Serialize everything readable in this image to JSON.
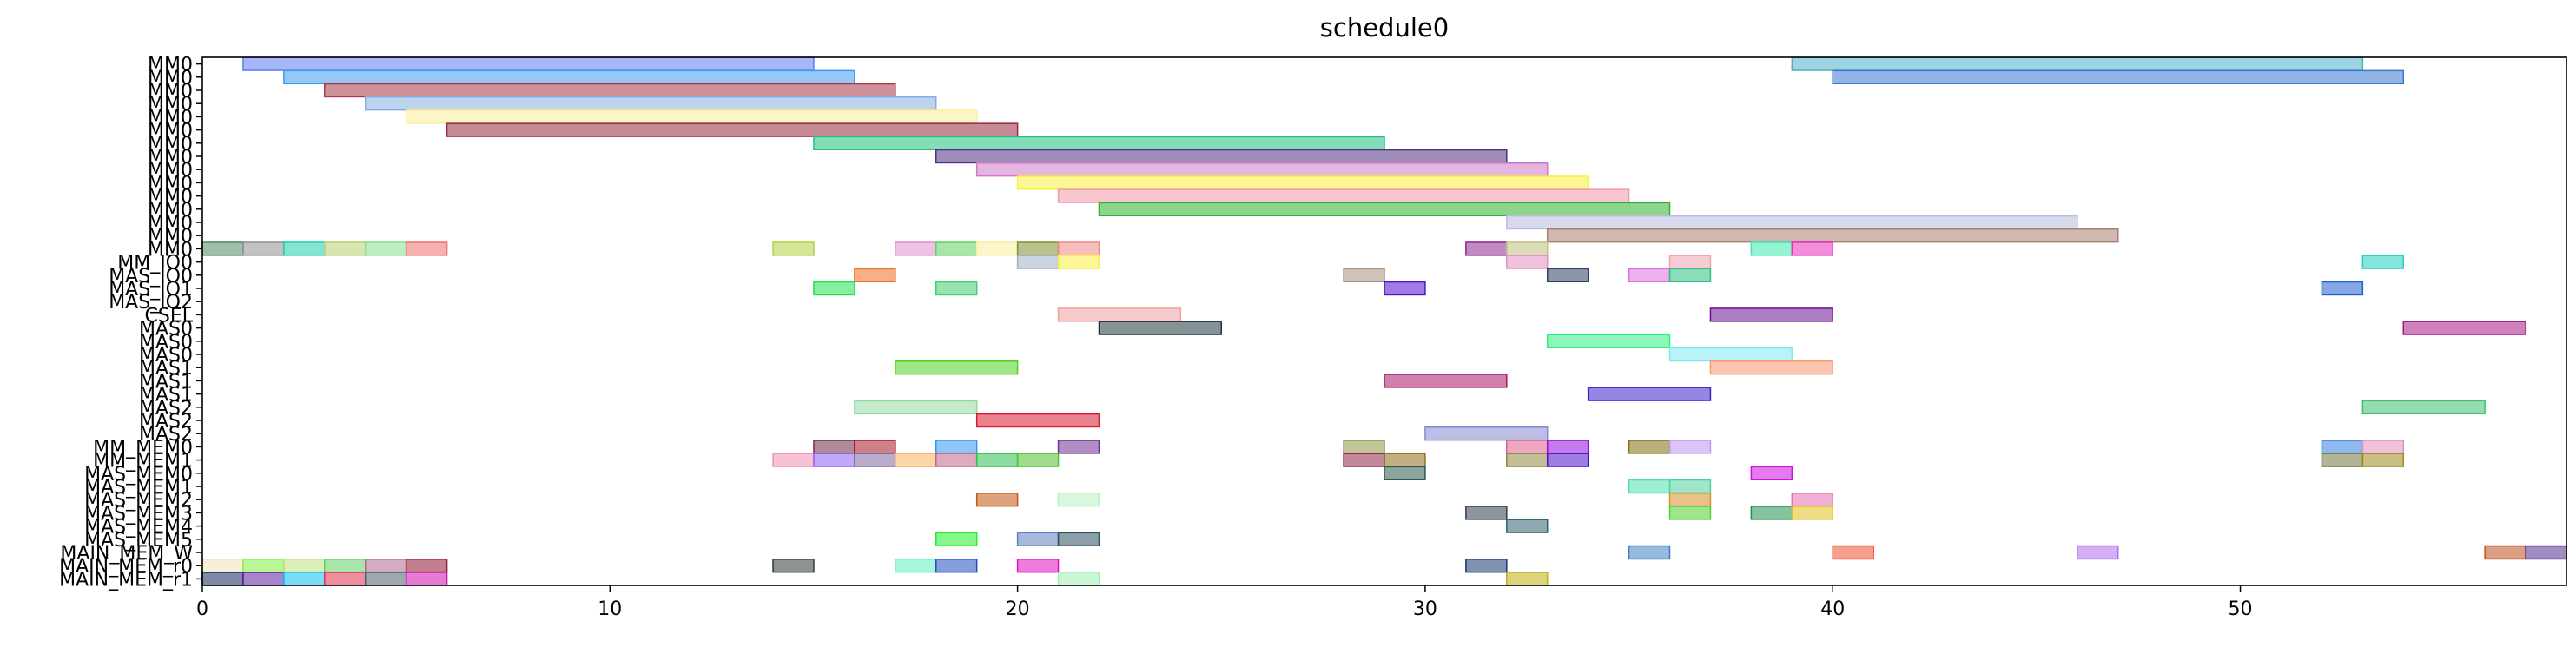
{
  "chart_data": {
    "type": "gantt",
    "title": "schedule0",
    "xlabel": "",
    "ylabel": "",
    "xlim": [
      0,
      58
    ],
    "x_ticks": [
      0,
      10,
      20,
      30,
      40,
      50
    ],
    "grid": false,
    "rows": [
      "MM0",
      "MM0",
      "MM0",
      "MM0",
      "MM0",
      "MM0",
      "MM0",
      "MM0",
      "MM0",
      "MM0",
      "MM0",
      "MM0",
      "MM0",
      "MM0",
      "MM0",
      "MM_IO0",
      "MAS_IO0",
      "MAS_IO1",
      "MAS_IO2",
      "CSEL",
      "MAS0",
      "MAS0",
      "MAS0",
      "MAS1",
      "MAS1",
      "MAS1",
      "MAS2",
      "MAS2",
      "MAS2",
      "MM_MEM0",
      "MM_MEM1",
      "MAS_MEM0",
      "MAS_MEM1",
      "MAS_MEM2",
      "MAS_MEM3",
      "MAS_MEM4",
      "MAS_MEM5",
      "MAIN_MEM_W",
      "MAIN_MEM_r0",
      "MAIN_MEM_r1"
    ],
    "tasks": [
      {
        "row": 0,
        "start": 1,
        "end": 15,
        "color": "#5c7cf0"
      },
      {
        "row": 0,
        "start": 39,
        "end": 53,
        "color": "#4fb0c6"
      },
      {
        "row": 1,
        "start": 2,
        "end": 16,
        "color": "#3a9bf0"
      },
      {
        "row": 1,
        "start": 40,
        "end": 54,
        "color": "#3a78d0"
      },
      {
        "row": 2,
        "start": 3,
        "end": 17,
        "color": "#a83848"
      },
      {
        "row": 3,
        "start": 4,
        "end": 18,
        "color": "#88aee0"
      },
      {
        "row": 4,
        "start": 5,
        "end": 19,
        "color": "#fbef98"
      },
      {
        "row": 5,
        "start": 6,
        "end": 20,
        "color": "#982840"
      },
      {
        "row": 6,
        "start": 15,
        "end": 29,
        "color": "#20c080"
      },
      {
        "row": 7,
        "start": 18,
        "end": 32,
        "color": "#503080"
      },
      {
        "row": 8,
        "start": 19,
        "end": 33,
        "color": "#d078c8"
      },
      {
        "row": 9,
        "start": 20,
        "end": 34,
        "color": "#f8f040"
      },
      {
        "row": 10,
        "start": 21,
        "end": 35,
        "color": "#f098a8"
      },
      {
        "row": 11,
        "start": 22,
        "end": 36,
        "color": "#30b030"
      },
      {
        "row": 12,
        "start": 32,
        "end": 46,
        "color": "#b8bce0"
      },
      {
        "row": 13,
        "start": 33,
        "end": 47,
        "color": "#a88070"
      },
      {
        "row": 14,
        "start": 0,
        "end": 1,
        "color": "#508868"
      },
      {
        "row": 14,
        "start": 1,
        "end": 2,
        "color": "#909090"
      },
      {
        "row": 14,
        "start": 2,
        "end": 3,
        "color": "#20d0b0"
      },
      {
        "row": 14,
        "start": 3,
        "end": 4,
        "color": "#b8d070"
      },
      {
        "row": 14,
        "start": 4,
        "end": 5,
        "color": "#88e090"
      },
      {
        "row": 14,
        "start": 5,
        "end": 6,
        "color": "#f07070"
      },
      {
        "row": 14,
        "start": 14,
        "end": 15,
        "color": "#b0d040"
      },
      {
        "row": 14,
        "start": 17,
        "end": 18,
        "color": "#e090d0"
      },
      {
        "row": 14,
        "start": 18,
        "end": 19,
        "color": "#60d060"
      },
      {
        "row": 14,
        "start": 19,
        "end": 20,
        "color": "#f8f0a0"
      },
      {
        "row": 14,
        "start": 20,
        "end": 21,
        "color": "#809030"
      },
      {
        "row": 14,
        "start": 21,
        "end": 22,
        "color": "#f08888"
      },
      {
        "row": 14,
        "start": 31,
        "end": 32,
        "color": "#902890"
      },
      {
        "row": 14,
        "start": 32,
        "end": 33,
        "color": "#c0c080"
      },
      {
        "row": 14,
        "start": 38,
        "end": 39,
        "color": "#40e8b0"
      },
      {
        "row": 14,
        "start": 39,
        "end": 40,
        "color": "#e830c0"
      },
      {
        "row": 15,
        "start": 20,
        "end": 21,
        "color": "#a0b0c8"
      },
      {
        "row": 15,
        "start": 21,
        "end": 22,
        "color": "#f8f040"
      },
      {
        "row": 15,
        "start": 32,
        "end": 33,
        "color": "#e090c0"
      },
      {
        "row": 15,
        "start": 36,
        "end": 37,
        "color": "#f0a0b0"
      },
      {
        "row": 15,
        "start": 53,
        "end": 54,
        "color": "#20d0c0"
      },
      {
        "row": 16,
        "start": 16,
        "end": 17,
        "color": "#f07020"
      },
      {
        "row": 16,
        "start": 28,
        "end": 29,
        "color": "#a89080"
      },
      {
        "row": 16,
        "start": 33,
        "end": 34,
        "color": "#304060"
      },
      {
        "row": 16,
        "start": 35,
        "end": 36,
        "color": "#e070e0"
      },
      {
        "row": 16,
        "start": 36,
        "end": 37,
        "color": "#30c080"
      },
      {
        "row": 17,
        "start": 15,
        "end": 16,
        "color": "#20e050"
      },
      {
        "row": 17,
        "start": 18,
        "end": 19,
        "color": "#40d070"
      },
      {
        "row": 17,
        "start": 29,
        "end": 30,
        "color": "#5010d0"
      },
      {
        "row": 17,
        "start": 52,
        "end": 53,
        "color": "#2060d0"
      },
      {
        "row": 19,
        "start": 21,
        "end": 24,
        "color": "#f0a0a0"
      },
      {
        "row": 19,
        "start": 37,
        "end": 40,
        "color": "#701090"
      },
      {
        "row": 20,
        "start": 22,
        "end": 25,
        "color": "#203840"
      },
      {
        "row": 20,
        "start": 54,
        "end": 57,
        "color": "#a81888"
      },
      {
        "row": 21,
        "start": 33,
        "end": 36,
        "color": "#30f080"
      },
      {
        "row": 22,
        "start": 36,
        "end": 39,
        "color": "#80e8f0"
      },
      {
        "row": 23,
        "start": 17,
        "end": 20,
        "color": "#50d020"
      },
      {
        "row": 23,
        "start": 37,
        "end": 40,
        "color": "#f89870"
      },
      {
        "row": 24,
        "start": 29,
        "end": 32,
        "color": "#a81868"
      },
      {
        "row": 25,
        "start": 34,
        "end": 37,
        "color": "#4020c8"
      },
      {
        "row": 26,
        "start": 16,
        "end": 19,
        "color": "#90d8a0"
      },
      {
        "row": 26,
        "start": 53,
        "end": 56,
        "color": "#40c070"
      },
      {
        "row": 27,
        "start": 19,
        "end": 22,
        "color": "#d81830"
      },
      {
        "row": 28,
        "start": 30,
        "end": 33,
        "color": "#8888d0"
      },
      {
        "row": 29,
        "start": 15,
        "end": 16,
        "color": "#703040"
      },
      {
        "row": 29,
        "start": 16,
        "end": 17,
        "color": "#a81828"
      },
      {
        "row": 29,
        "start": 18,
        "end": 19,
        "color": "#3098f0"
      },
      {
        "row": 29,
        "start": 21,
        "end": 22,
        "color": "#703090"
      },
      {
        "row": 29,
        "start": 28,
        "end": 29,
        "color": "#909840"
      },
      {
        "row": 29,
        "start": 32,
        "end": 33,
        "color": "#e06090"
      },
      {
        "row": 29,
        "start": 33,
        "end": 34,
        "color": "#9010e0"
      },
      {
        "row": 29,
        "start": 35,
        "end": 36,
        "color": "#807010"
      },
      {
        "row": 29,
        "start": 36,
        "end": 37,
        "color": "#c098f0"
      },
      {
        "row": 29,
        "start": 52,
        "end": 53,
        "color": "#3080e0"
      },
      {
        "row": 29,
        "start": 53,
        "end": 54,
        "color": "#e090c0"
      },
      {
        "row": 30,
        "start": 14,
        "end": 15,
        "color": "#f090b0"
      },
      {
        "row": 30,
        "start": 15,
        "end": 16,
        "color": "#9060f0"
      },
      {
        "row": 30,
        "start": 16,
        "end": 17,
        "color": "#8068a8"
      },
      {
        "row": 30,
        "start": 17,
        "end": 18,
        "color": "#f8b060"
      },
      {
        "row": 30,
        "start": 18,
        "end": 19,
        "color": "#c06888"
      },
      {
        "row": 30,
        "start": 19,
        "end": 20,
        "color": "#30c050"
      },
      {
        "row": 30,
        "start": 20,
        "end": 21,
        "color": "#50c030"
      },
      {
        "row": 30,
        "start": 28,
        "end": 29,
        "color": "#902848"
      },
      {
        "row": 30,
        "start": 29,
        "end": 30,
        "color": "#907020"
      },
      {
        "row": 30,
        "start": 32,
        "end": 33,
        "color": "#908840"
      },
      {
        "row": 30,
        "start": 33,
        "end": 34,
        "color": "#5010c8"
      },
      {
        "row": 30,
        "start": 52,
        "end": 53,
        "color": "#707840"
      },
      {
        "row": 30,
        "start": 53,
        "end": 54,
        "color": "#a08820"
      },
      {
        "row": 31,
        "start": 29,
        "end": 30,
        "color": "#305848"
      },
      {
        "row": 31,
        "start": 38,
        "end": 39,
        "color": "#d010e0"
      },
      {
        "row": 32,
        "start": 35,
        "end": 36,
        "color": "#50e0b0"
      },
      {
        "row": 32,
        "start": 36,
        "end": 37,
        "color": "#50d0a0"
      },
      {
        "row": 33,
        "start": 19,
        "end": 20,
        "color": "#c05810"
      },
      {
        "row": 33,
        "start": 21,
        "end": 22,
        "color": "#b8f0c0"
      },
      {
        "row": 33,
        "start": 36,
        "end": 37,
        "color": "#d89028"
      },
      {
        "row": 33,
        "start": 39,
        "end": 40,
        "color": "#e870b0"
      },
      {
        "row": 34,
        "start": 31,
        "end": 32,
        "color": "#304050"
      },
      {
        "row": 34,
        "start": 36,
        "end": 37,
        "color": "#50d030"
      },
      {
        "row": 34,
        "start": 38,
        "end": 39,
        "color": "#209050"
      },
      {
        "row": 34,
        "start": 39,
        "end": 40,
        "color": "#e0c020"
      },
      {
        "row": 35,
        "start": 32,
        "end": 33,
        "color": "#306070"
      },
      {
        "row": 36,
        "start": 18,
        "end": 19,
        "color": "#20f030"
      },
      {
        "row": 36,
        "start": 20,
        "end": 21,
        "color": "#6080c0"
      },
      {
        "row": 36,
        "start": 21,
        "end": 22,
        "color": "#305060"
      },
      {
        "row": 37,
        "start": 35,
        "end": 36,
        "color": "#4080c0"
      },
      {
        "row": 37,
        "start": 40,
        "end": 41,
        "color": "#f05030"
      },
      {
        "row": 37,
        "start": 46,
        "end": 47,
        "color": "#b070f0"
      },
      {
        "row": 37,
        "start": 56,
        "end": 57,
        "color": "#c05020"
      },
      {
        "row": 37,
        "start": 57,
        "end": 58,
        "color": "#503090"
      },
      {
        "row": 38,
        "start": 0,
        "end": 1,
        "color": "#f0e0c0"
      },
      {
        "row": 38,
        "start": 1,
        "end": 2,
        "color": "#80f040"
      },
      {
        "row": 38,
        "start": 2,
        "end": 3,
        "color": "#c0e080"
      },
      {
        "row": 38,
        "start": 3,
        "end": 4,
        "color": "#60d060"
      },
      {
        "row": 38,
        "start": 4,
        "end": 5,
        "color": "#b06890"
      },
      {
        "row": 38,
        "start": 5,
        "end": 6,
        "color": "#901830"
      },
      {
        "row": 38,
        "start": 14,
        "end": 15,
        "color": "#303838"
      },
      {
        "row": 38,
        "start": 17,
        "end": 18,
        "color": "#60f0c0"
      },
      {
        "row": 38,
        "start": 18,
        "end": 19,
        "color": "#2050c0"
      },
      {
        "row": 38,
        "start": 20,
        "end": 21,
        "color": "#e010c0"
      },
      {
        "row": 38,
        "start": 31,
        "end": 32,
        "color": "#183870"
      },
      {
        "row": 39,
        "start": 0,
        "end": 1,
        "color": "#182858"
      },
      {
        "row": 39,
        "start": 1,
        "end": 2,
        "color": "#6020a0"
      },
      {
        "row": 39,
        "start": 2,
        "end": 3,
        "color": "#10c0f0"
      },
      {
        "row": 39,
        "start": 3,
        "end": 4,
        "color": "#e03050"
      },
      {
        "row": 39,
        "start": 4,
        "end": 5,
        "color": "#506070"
      },
      {
        "row": 39,
        "start": 5,
        "end": 6,
        "color": "#d010b0"
      },
      {
        "row": 39,
        "start": 21,
        "end": 22,
        "color": "#a0f0b0"
      },
      {
        "row": 39,
        "start": 32,
        "end": 33,
        "color": "#c0b010"
      }
    ]
  }
}
